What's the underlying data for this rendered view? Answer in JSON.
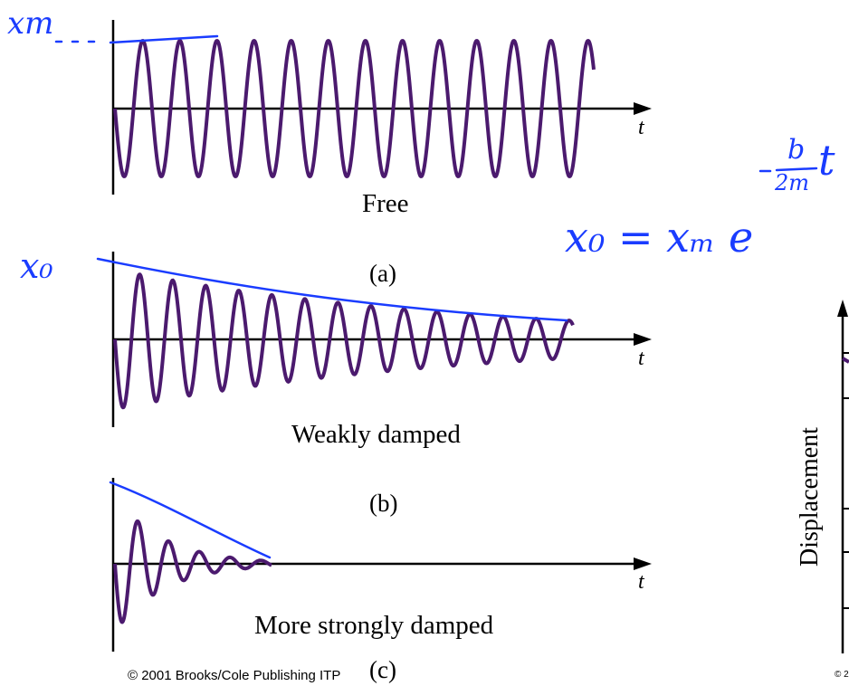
{
  "colors": {
    "wave": "#4b1a6e",
    "axis": "#000000",
    "annotation": "#1a3cff"
  },
  "panels": [
    {
      "id": "a",
      "caption": "Free",
      "letter": "(a)",
      "axis_label": "t",
      "damping": "none"
    },
    {
      "id": "b",
      "caption": "Weakly damped",
      "letter": "(b)",
      "axis_label": "t",
      "damping": "weak"
    },
    {
      "id": "c",
      "caption": "More strongly damped",
      "letter": "(c)",
      "axis_label": "t",
      "damping": "strong"
    }
  ],
  "copyright": "© 2001 Brooks/Cole Publishing ITP",
  "side_figure": {
    "ylabel": "Displacement",
    "copyright_fragment": "© 2"
  },
  "annotations": {
    "xm_label": "xm",
    "x0_label": "x₀",
    "formula_lhs": "x₀ = xₘ e",
    "exponent_num": "b",
    "exponent_den": "2m",
    "exponent_sign": "−",
    "exponent_var": "t"
  }
}
